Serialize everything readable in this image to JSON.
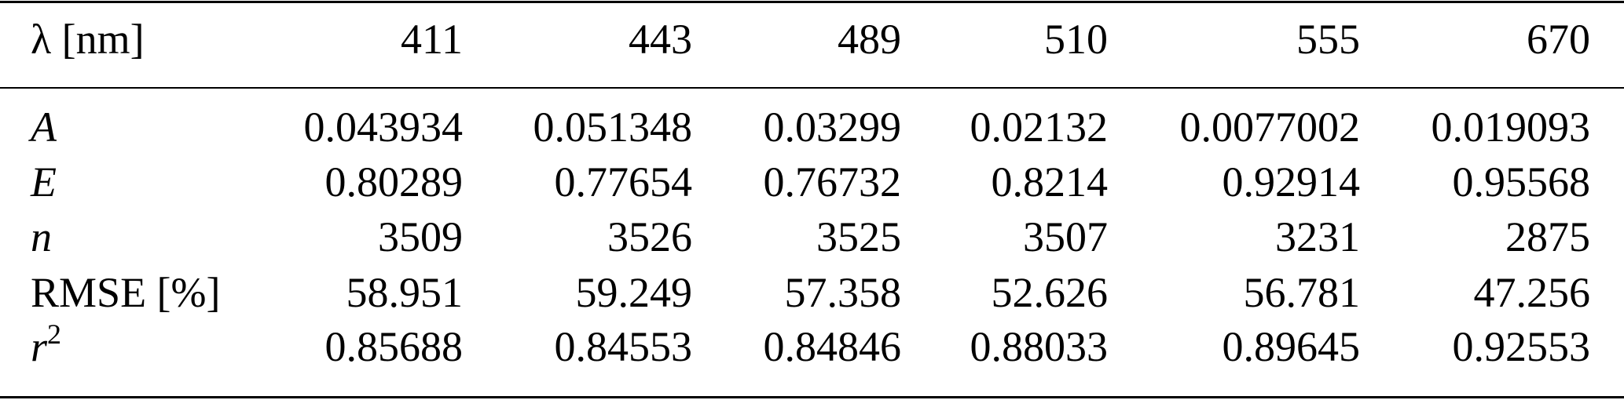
{
  "table": {
    "header": {
      "label": "λ [nm]",
      "columns": [
        "411",
        "443",
        "489",
        "510",
        "555",
        "670"
      ]
    },
    "rows": [
      {
        "label": "A",
        "italic": true,
        "values": [
          "0.043934",
          "0.051348",
          "0.03299",
          "0.02132",
          "0.0077002",
          "0.019093"
        ]
      },
      {
        "label": "E",
        "italic": true,
        "values": [
          "0.80289",
          "0.77654",
          "0.76732",
          "0.8214",
          "0.92914",
          "0.95568"
        ]
      },
      {
        "label": "n",
        "italic": true,
        "values": [
          "3509",
          "3526",
          "3525",
          "3507",
          "3231",
          "2875"
        ]
      },
      {
        "label": "RMSE [%]",
        "italic": false,
        "values": [
          "58.951",
          "59.249",
          "57.358",
          "52.626",
          "56.781",
          "47.256"
        ]
      },
      {
        "label": "r",
        "label_sup": "2",
        "italic": true,
        "values": [
          "0.85688",
          "0.84553",
          "0.84846",
          "0.88033",
          "0.89645",
          "0.92553"
        ]
      }
    ]
  }
}
